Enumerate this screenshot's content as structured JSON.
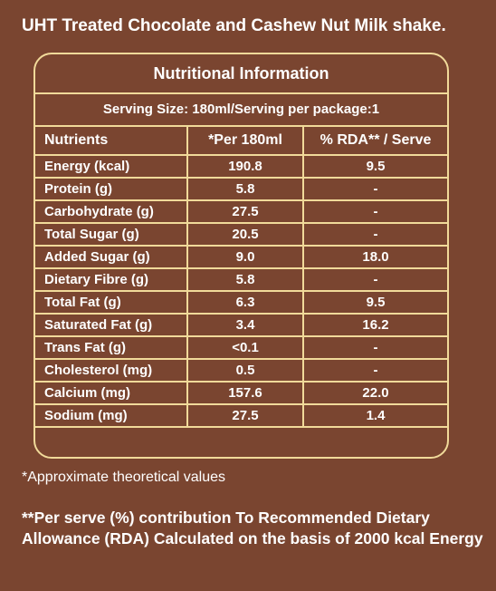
{
  "title": "UHT Treated Chocolate and Cashew Nut Milk shake.",
  "panel": {
    "heading": "Nutritional Information",
    "serving": "Serving Size: 180ml/Serving per package:1"
  },
  "table": {
    "headers": [
      "Nutrients",
      "*Per 180ml",
      "% RDA** / Serve"
    ],
    "rows": [
      [
        "Energy (kcal)",
        "190.8",
        "9.5"
      ],
      [
        "Protein (g)",
        "5.8",
        "-"
      ],
      [
        "Carbohydrate (g)",
        "27.5",
        "-"
      ],
      [
        "Total Sugar (g)",
        "20.5",
        "-"
      ],
      [
        "Added Sugar (g)",
        "9.0",
        "18.0"
      ],
      [
        "Dietary Fibre (g)",
        "5.8",
        "-"
      ],
      [
        "Total Fat (g)",
        "6.3",
        "9.5"
      ],
      [
        "Saturated Fat (g)",
        "3.4",
        "16.2"
      ],
      [
        "Trans Fat (g)",
        "<0.1",
        "-"
      ],
      [
        "Cholesterol (mg)",
        "0.5",
        "-"
      ],
      [
        "Calcium (mg)",
        "157.6",
        "22.0"
      ],
      [
        "Sodium (mg)",
        "27.5",
        "1.4"
      ]
    ]
  },
  "notes": {
    "approx": "*Approximate theoretical values",
    "rda": "**Per serve (%) contribution To Recommended Dietary Allowance (RDA) Calculated on the basis of 2000 kcal Energy"
  },
  "colors": {
    "background": "#7a4530",
    "border": "#f1da9a",
    "text": "#ffffff"
  }
}
